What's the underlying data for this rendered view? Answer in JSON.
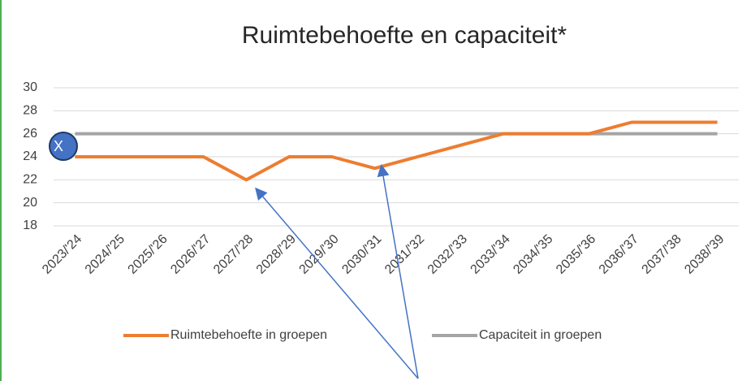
{
  "chart_data": {
    "type": "line",
    "title": "Ruimtebehoefte en capaciteit*",
    "categories": [
      "2023/'24",
      "2024/'25",
      "2025/'26",
      "2026/'27",
      "2027/'28",
      "2028/'29",
      "2029/'30",
      "2030/'31",
      "2031/'32",
      "2032/'33",
      "2033/'34",
      "2034/'35",
      "2035/'36",
      "2036/'37",
      "2037/'38",
      "2038/'39"
    ],
    "series": [
      {
        "name": "Ruimtebehoefte in groepen",
        "color": "#ed7d31",
        "values": [
          24,
          24,
          24,
          24,
          22,
          24,
          24,
          23,
          24,
          25,
          26,
          26,
          26,
          27,
          27,
          27
        ]
      },
      {
        "name": "Capaciteit in groepen",
        "color": "#a5a5a5",
        "values": [
          26,
          26,
          26,
          26,
          26,
          26,
          26,
          26,
          26,
          26,
          26,
          26,
          26,
          26,
          26,
          26
        ]
      }
    ],
    "ylim": [
      18,
      30
    ],
    "yticks": [
      18,
      20,
      22,
      24,
      26,
      28,
      30
    ],
    "grid": true,
    "legend": "bottom",
    "annotation": "X"
  }
}
